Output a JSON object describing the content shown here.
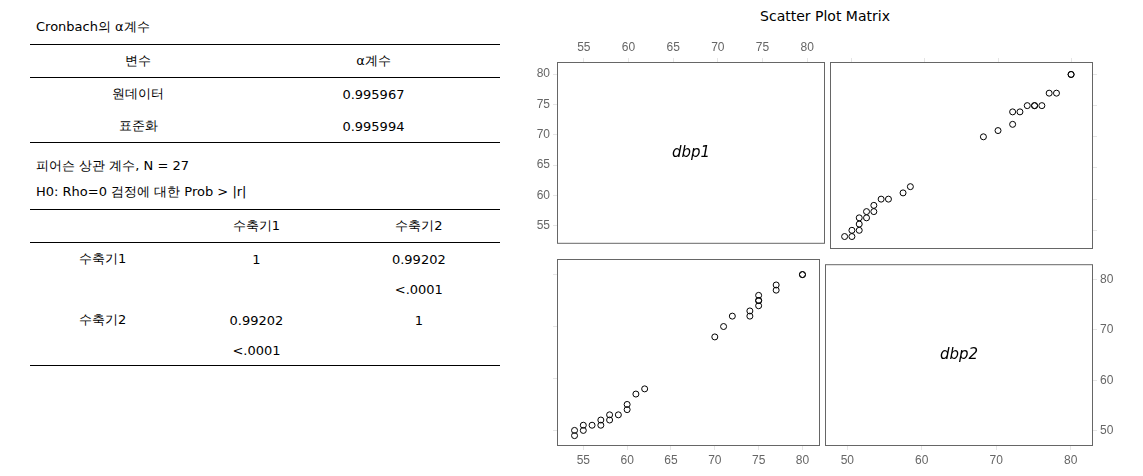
{
  "chart_data": [
    {
      "type": "table",
      "title": "Cronbach의  α계수",
      "columns": [
        "변수",
        "α계수"
      ],
      "rows": [
        [
          "원데이터",
          "0.995967"
        ],
        [
          "표준화",
          "0.995994"
        ]
      ]
    },
    {
      "type": "table",
      "title": "피어슨 상관 계수, N = 27",
      "subtitle": "H0: Rho=0 검정에  대한 Prob > |r|",
      "columns": [
        null,
        "수축기1",
        "수축기2"
      ],
      "rows": [
        [
          "수축기1",
          "1",
          "0.99202"
        ],
        [
          null,
          null,
          "<.0001"
        ],
        [
          "수축기2",
          "0.99202",
          "1"
        ],
        [
          null,
          "<.0001",
          null
        ]
      ]
    },
    {
      "type": "scatter_matrix",
      "title": "Scatter Plot Matrix",
      "panels": [
        {
          "type": "label",
          "annotations": [
            "dbp1"
          ],
          "xlim": [
            52,
            82
          ],
          "ylim": [
            52,
            82
          ],
          "xticks": [
            55,
            60,
            65,
            70,
            75,
            80
          ],
          "yticks": [
            55,
            60,
            65,
            70,
            75,
            80
          ]
        },
        {
          "type": "scatter",
          "color": "#000000",
          "marker": "circle",
          "tick_labels": false,
          "x": [
            49,
            50,
            50,
            51,
            51,
            51,
            52,
            52,
            53,
            53,
            54,
            55,
            57,
            58,
            68,
            70,
            72,
            72,
            73,
            74,
            75,
            75,
            76,
            77,
            78,
            80,
            80
          ],
          "values": [
            54,
            54,
            55,
            55,
            56,
            57,
            57,
            58,
            58,
            59,
            60,
            60,
            61,
            62,
            70,
            71,
            72,
            74,
            74,
            75,
            75,
            75,
            75,
            77,
            77,
            80,
            80
          ],
          "xlim": [
            47,
            83
          ],
          "ylim": [
            52,
            82
          ],
          "xticks": [
            50,
            60,
            70,
            80
          ],
          "yticks": [
            55,
            60,
            65,
            70,
            75,
            80
          ]
        },
        {
          "type": "scatter",
          "color": "#000000",
          "marker": "circle",
          "tick_labels": "x",
          "x": [
            54,
            54,
            55,
            55,
            56,
            57,
            57,
            58,
            58,
            59,
            60,
            60,
            61,
            62,
            70,
            71,
            72,
            74,
            74,
            75,
            75,
            75,
            75,
            77,
            77,
            80,
            80
          ],
          "values": [
            49,
            50,
            50,
            51,
            51,
            51,
            52,
            52,
            53,
            53,
            54,
            55,
            57,
            58,
            68,
            70,
            72,
            72,
            73,
            74,
            75,
            75,
            76,
            77,
            78,
            80,
            80
          ],
          "xlim": [
            52,
            82
          ],
          "ylim": [
            47,
            83
          ],
          "xticks": [
            55,
            60,
            65,
            70,
            75,
            80
          ],
          "yticks": [
            50,
            60,
            70,
            80
          ]
        },
        {
          "type": "label",
          "annotations": [
            "dbp2"
          ],
          "xlim": [
            47,
            83
          ],
          "ylim": [
            47,
            83
          ],
          "xticks": [
            50,
            60,
            70,
            80
          ],
          "yticks": [
            50,
            60,
            70,
            80
          ]
        }
      ]
    }
  ]
}
